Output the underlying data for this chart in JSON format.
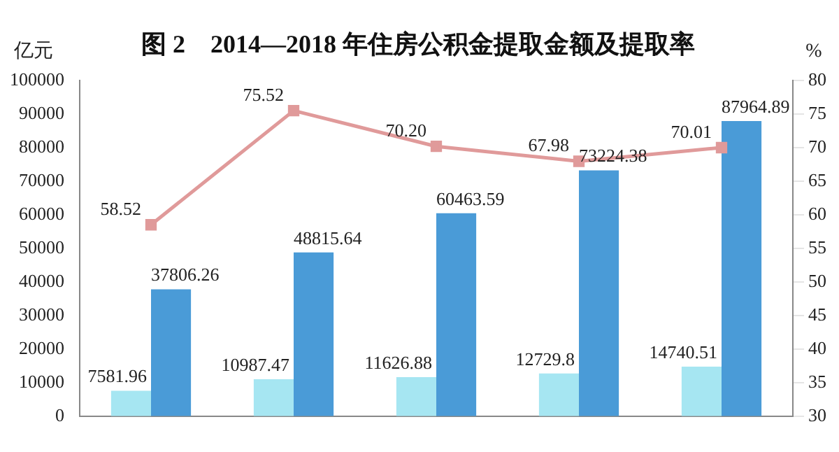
{
  "chart_data": {
    "type": "bar",
    "title": "图 2　2014—2018 年住房公积金提取金额及提取率",
    "ylabel": "亿元",
    "y2label": "%",
    "categories": [
      null,
      null,
      null,
      null,
      null
    ],
    "series": [
      {
        "color": "#a6e6f2",
        "values": [
          7581.96,
          10987.47,
          11626.88,
          12729.8,
          14740.51
        ],
        "value_labels": [
          "7581.96",
          "10987.47",
          "11626.88",
          "12729.8",
          "14740.51"
        ]
      },
      {
        "color": "#4a9bd7",
        "values": [
          37806.26,
          48815.64,
          60463.59,
          73224.38,
          87964.89
        ],
        "value_labels": [
          "37806.26",
          "48815.64",
          "60463.59",
          "73224.38",
          "87964.89"
        ]
      },
      {
        "type": "line",
        "axis": "y2",
        "color": "#e09a9a",
        "marker": "square",
        "values": [
          58.52,
          75.52,
          70.2,
          67.98,
          70.01
        ],
        "value_labels": [
          "58.52",
          "75.52",
          "70.20",
          "67.98",
          "70.01"
        ]
      }
    ],
    "ylim": [
      0,
      100000
    ],
    "yticks": [
      0,
      10000,
      20000,
      30000,
      40000,
      50000,
      60000,
      70000,
      80000,
      90000,
      100000
    ],
    "y2lim": [
      30,
      80
    ],
    "y2ticks": [
      30,
      35,
      40,
      45,
      50,
      55,
      60,
      65,
      70,
      75,
      80
    ],
    "grid": false,
    "legend": false
  }
}
